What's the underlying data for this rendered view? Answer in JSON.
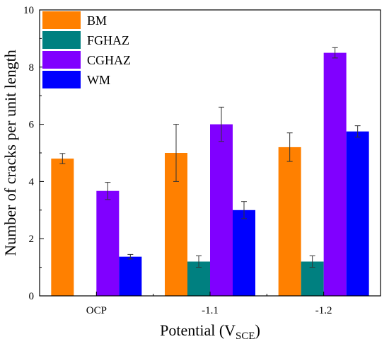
{
  "chart_data": {
    "type": "bar",
    "title": "",
    "xlabel": "Potential (V",
    "xlabel_subscript": "SCE",
    "xlabel_suffix": ")",
    "ylabel": "Number of cracks  per unit length",
    "ylim": [
      0,
      10
    ],
    "yticks": [
      "0",
      "2",
      "4",
      "6",
      "8",
      "10"
    ],
    "categories": [
      "OCP",
      "-1.1",
      "-1.2"
    ],
    "legend_position": "top-left",
    "series": [
      {
        "name": "BM",
        "color": "#ff8000",
        "values": [
          4.8,
          5.0,
          5.2
        ],
        "errors": [
          0.18,
          1.0,
          0.5
        ]
      },
      {
        "name": "FGHAZ",
        "color": "#008080",
        "values": [
          0,
          1.2,
          1.2
        ],
        "errors": [
          0,
          0.2,
          0.2
        ]
      },
      {
        "name": "CGHAZ",
        "color": "#8000ff",
        "values": [
          3.67,
          6.0,
          8.5
        ],
        "errors": [
          0.3,
          0.6,
          0.18
        ]
      },
      {
        "name": "WM",
        "color": "#0000ff",
        "values": [
          1.37,
          3.0,
          5.75
        ],
        "errors": [
          0.08,
          0.3,
          0.2
        ]
      }
    ]
  }
}
